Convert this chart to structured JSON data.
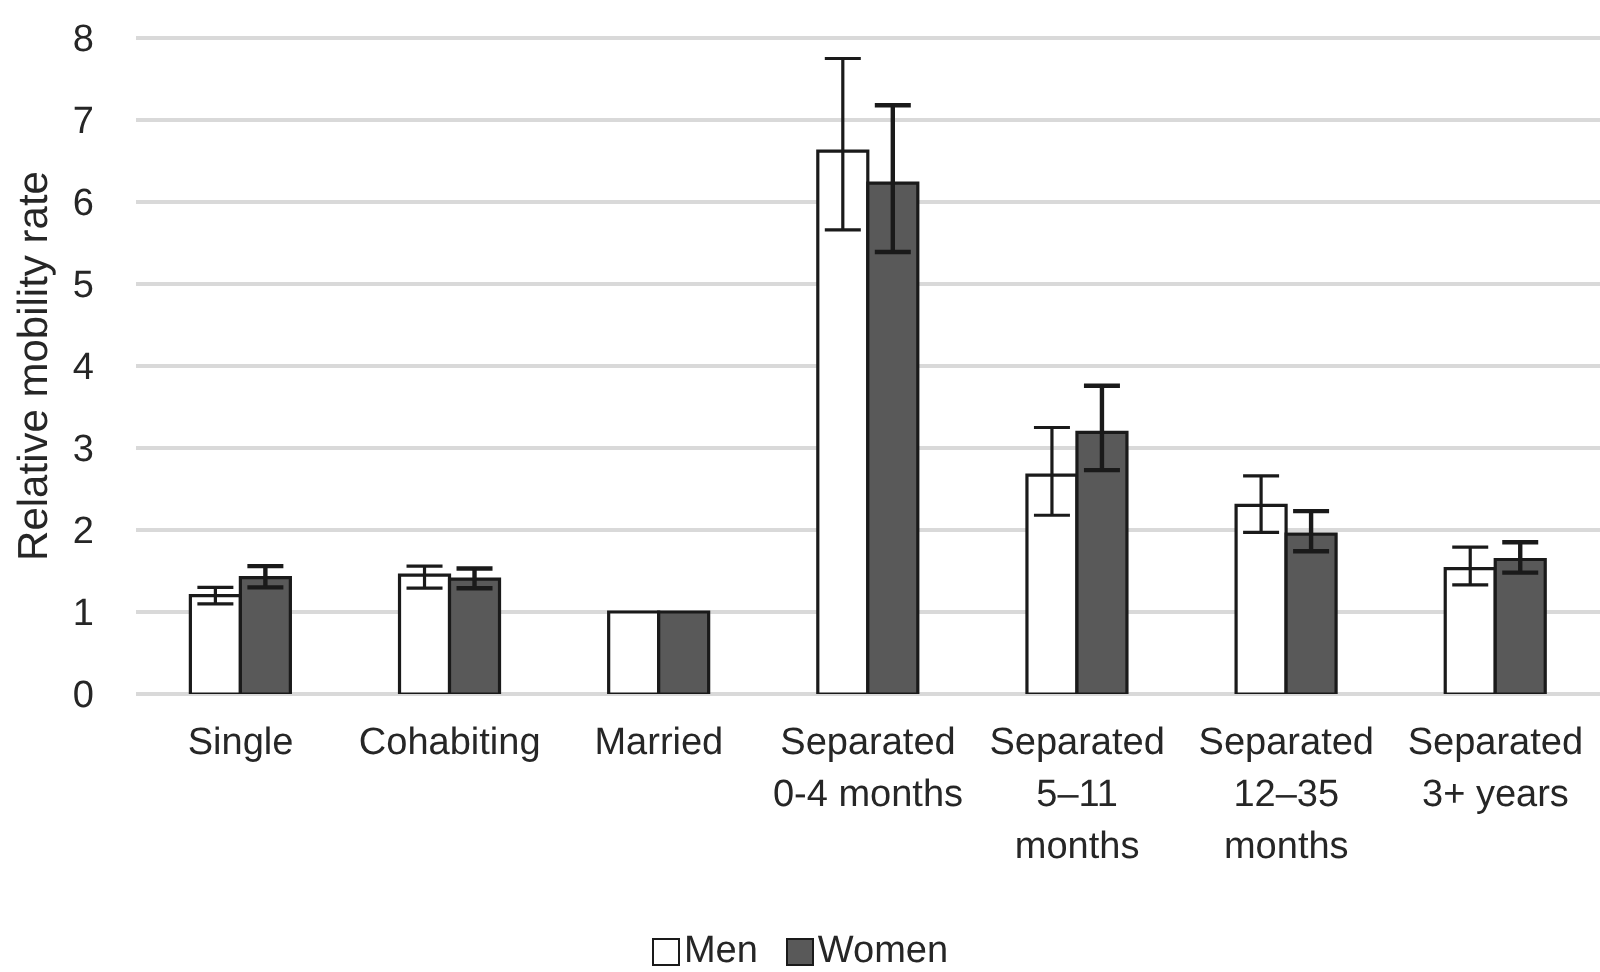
{
  "chart_data": {
    "type": "bar",
    "ylabel": "Relative mobility rate",
    "categories": [
      "Single",
      "Cohabiting",
      "Married",
      "Separated 0-4 months",
      "Separated 5–11 months",
      "Separated 12–35 months",
      "Separated 3+ years"
    ],
    "series": [
      {
        "name": "Men",
        "color": "#ffffff",
        "values": [
          1.2,
          1.45,
          1,
          6.62,
          2.67,
          2.3,
          1.53
        ],
        "errors": [
          [
            1.1,
            1.3
          ],
          [
            1.29,
            1.56
          ],
          null,
          [
            5.66,
            7.75
          ],
          [
            2.18,
            3.25
          ],
          [
            1.97,
            2.66
          ],
          [
            1.33,
            1.79
          ]
        ]
      },
      {
        "name": "Women",
        "color": "#595959",
        "values": [
          1.42,
          1.4,
          1,
          6.23,
          3.19,
          1.95,
          1.64
        ],
        "errors": [
          [
            1.3,
            1.56
          ],
          [
            1.29,
            1.53
          ],
          null,
          [
            5.39,
            7.18
          ],
          [
            2.73,
            3.76
          ],
          [
            1.74,
            2.23
          ],
          [
            1.48,
            1.85
          ]
        ]
      }
    ],
    "ylim": [
      0,
      8
    ],
    "yticks": [
      0,
      1,
      2,
      3,
      4,
      5,
      6,
      7,
      8
    ],
    "grid": "y",
    "legend": "bottom"
  }
}
